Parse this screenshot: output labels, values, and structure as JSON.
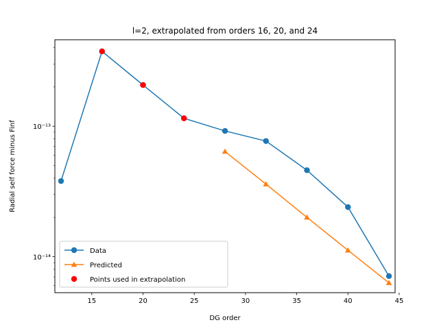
{
  "chart_data": {
    "type": "line",
    "title": "l=2, extrapolated from orders 16, 20, and 24",
    "xlabel": "DG order",
    "ylabel": "Radial self force minus Finf",
    "xscale": "linear",
    "yscale": "log",
    "xlim": [
      11.4,
      44.6
    ],
    "ylim": [
      5.3e-15,
      4.6e-13
    ],
    "xticks": [
      15,
      20,
      25,
      30,
      35,
      40,
      45
    ],
    "xtick_labels": [
      "15",
      "20",
      "25",
      "30",
      "35",
      "40",
      "45"
    ],
    "yticks": [
      1e-14,
      1e-13
    ],
    "ytick_labels": [
      "10⁻¹⁴",
      "10⁻¹³"
    ],
    "grid": false,
    "legend_position": "lower-left",
    "series": [
      {
        "name": "Data",
        "color": "#1f77b4",
        "marker": "circle",
        "line": true,
        "x": [
          12,
          16,
          20,
          24,
          28,
          32,
          36,
          40,
          44
        ],
        "y": [
          3.8e-14,
          3.75e-13,
          2.07e-13,
          1.15e-13,
          9.2e-14,
          7.7e-14,
          4.6e-14,
          2.4e-14,
          7.1e-15
        ]
      },
      {
        "name": "Predicted",
        "color": "#ff7f0e",
        "marker": "triangle",
        "line": true,
        "x": [
          28,
          32,
          36,
          40,
          44
        ],
        "y": [
          6.4e-14,
          3.6e-14,
          2e-14,
          1.12e-14,
          6.3e-15
        ]
      },
      {
        "name": "Points used in extrapolation",
        "color": "#ff0000",
        "marker": "circle",
        "line": false,
        "x": [
          16,
          20,
          24
        ],
        "y": [
          3.75e-13,
          2.07e-13,
          1.15e-13
        ]
      }
    ]
  }
}
